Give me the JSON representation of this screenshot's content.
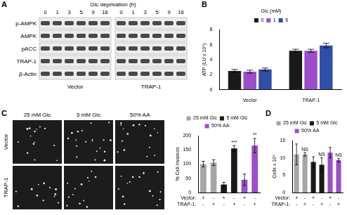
{
  "blot": {
    "panel": "A",
    "header": "Glc deprivation (h)",
    "lanes": [
      "0",
      "1",
      "3",
      "5",
      "9",
      "16"
    ],
    "groups": [
      "Vector",
      "TRAP-1"
    ],
    "rows": [
      "p-AMPK",
      "AMPK",
      "pACC",
      "TRAP-1",
      "β-Actin"
    ]
  },
  "micrographs": {
    "panel": "C",
    "columns": [
      "25 mM Glc",
      "5 mM Glc",
      "50% AA"
    ],
    "rows": [
      "Vector",
      "TRAP-1"
    ]
  },
  "chart_data": [
    {
      "type": "bar",
      "panel": "B",
      "categories": [
        "Vector",
        "TRAP-1"
      ],
      "y_label": "ATP (LU x 10⁵)",
      "legend_title": "Glc (mM)",
      "legend": "top",
      "grid": false,
      "ylim": [
        0,
        8
      ],
      "yticks": [
        0,
        2,
        4,
        6,
        8
      ],
      "series": [
        {
          "name": "0",
          "color": "#1a1a1a",
          "values": [
            2.5,
            5.2
          ],
          "errors": [
            0.2,
            0.2
          ]
        },
        {
          "name": "1",
          "color": "#9b4dca",
          "values": [
            2.4,
            5.2
          ],
          "errors": [
            0.2,
            0.2
          ]
        },
        {
          "name": "5",
          "color": "#2f4ea8",
          "values": [
            2.7,
            5.9
          ],
          "errors": [
            0.2,
            0.3
          ]
        }
      ]
    },
    {
      "type": "bar",
      "categories": [
        null,
        null,
        null,
        null,
        null,
        null
      ],
      "y_label": "% Cell invasion",
      "legend": "top",
      "grid": false,
      "ylim": [
        0,
        200
      ],
      "yticks": [
        0,
        50,
        100,
        150,
        200
      ],
      "series": [
        {
          "name": "25 mM Glc",
          "color": "#a6a6a6",
          "values": [
            100,
            105,
            null,
            null,
            null,
            null
          ],
          "errors": [
            10,
            10,
            null,
            null,
            null,
            null
          ]
        },
        {
          "name": "5 mM Glc",
          "color": "#1a1a1a",
          "values": [
            null,
            null,
            28,
            155,
            null,
            null
          ],
          "errors": [
            null,
            null,
            8,
            10,
            null,
            null
          ]
        },
        {
          "name": "50% AA",
          "color": "#9b4dca",
          "values": [
            null,
            null,
            null,
            null,
            45,
            165
          ],
          "errors": [
            null,
            null,
            null,
            null,
            20,
            25
          ]
        }
      ],
      "significance": [
        null,
        null,
        null,
        "***",
        null,
        "**"
      ],
      "x_table": [
        {
          "label": "Vector:",
          "values": [
            "+",
            "-",
            "+",
            "-",
            "+",
            "-"
          ]
        },
        {
          "label": "TRAP-1:",
          "values": [
            "-",
            "+",
            "-",
            "+",
            "-",
            "+"
          ]
        }
      ]
    },
    {
      "type": "bar",
      "panel": "D",
      "categories": [
        null,
        null,
        null,
        null,
        null,
        null
      ],
      "y_label": "Cells x 10⁵",
      "legend": "top",
      "grid": false,
      "ylim": [
        0,
        15
      ],
      "yticks": [
        0,
        5,
        10,
        15
      ],
      "series": [
        {
          "name": "25 mM Glc",
          "color": "#a6a6a6",
          "values": [
            11,
            11,
            null,
            null,
            null,
            null
          ],
          "errors": [
            3,
            0.5,
            null,
            null,
            null,
            null
          ]
        },
        {
          "name": "5 mM Glc",
          "color": "#1a1a1a",
          "values": [
            null,
            null,
            8.8,
            8,
            null,
            null
          ],
          "errors": [
            null,
            null,
            1.5,
            2,
            null,
            null
          ]
        },
        {
          "name": "50% AA",
          "color": "#9b4dca",
          "values": [
            null,
            null,
            null,
            null,
            11.5,
            9.3
          ],
          "errors": [
            null,
            null,
            null,
            null,
            1.5,
            0.5
          ]
        }
      ],
      "significance": [
        null,
        "NS",
        null,
        "NS",
        null,
        "NS"
      ],
      "x_table": [
        {
          "label": "Vector:",
          "values": [
            "+",
            "-",
            "+",
            "-",
            "+",
            "-"
          ]
        },
        {
          "label": "TRAP-1:",
          "values": [
            "-",
            "+",
            "-",
            "+",
            "-",
            "+"
          ]
        }
      ]
    }
  ]
}
